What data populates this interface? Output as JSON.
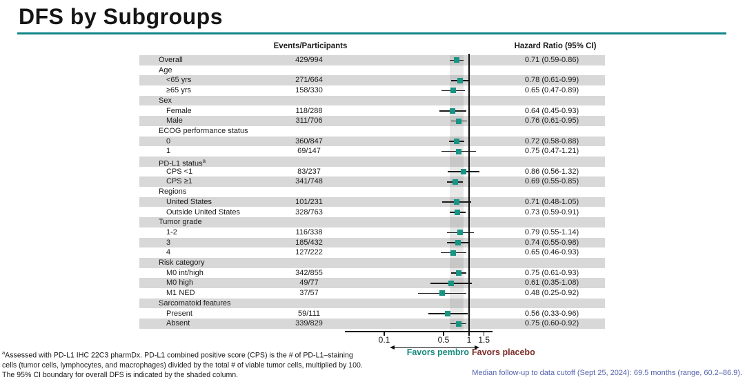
{
  "title": "DFS by Subgroups",
  "columns": {
    "events_header": "Events/Participants",
    "hr_header": "Hazard Ratio (95% CI)"
  },
  "chart_data": {
    "type": "forest",
    "x_axis": {
      "scale": "log",
      "ticks": [
        0.1,
        0.5,
        1,
        1.5
      ],
      "tick_labels": [
        "0.1",
        "0.5",
        "1",
        "1.5"
      ],
      "reference_line": 1
    },
    "shaded_band": {
      "from": 0.59,
      "to": 0.86,
      "meaning": "95% CI boundary for overall DFS"
    },
    "rows": [
      {
        "label": "Overall",
        "indent": 0,
        "events": "429/994",
        "hr": 0.71,
        "lo": 0.59,
        "hi": 0.86,
        "hr_text": "0.71 (0.59-0.86)"
      },
      {
        "label": "Age",
        "header": true
      },
      {
        "label": "<65 yrs",
        "indent": 1,
        "events": "271/664",
        "hr": 0.78,
        "lo": 0.61,
        "hi": 0.99,
        "hr_text": "0.78 (0.61-0.99)"
      },
      {
        "label": "≥65 yrs",
        "indent": 1,
        "events": "158/330",
        "hr": 0.65,
        "lo": 0.47,
        "hi": 0.89,
        "hr_text": "0.65 (0.47-0.89)"
      },
      {
        "label": "Sex",
        "header": true
      },
      {
        "label": "Female",
        "indent": 1,
        "events": "118/288",
        "hr": 0.64,
        "lo": 0.45,
        "hi": 0.93,
        "hr_text": "0.64 (0.45-0.93)"
      },
      {
        "label": "Male",
        "indent": 1,
        "events": "311/706",
        "hr": 0.76,
        "lo": 0.61,
        "hi": 0.95,
        "hr_text": "0.76 (0.61-0.95)"
      },
      {
        "label": "ECOG performance status",
        "header": true
      },
      {
        "label": "0",
        "indent": 1,
        "events": "360/847",
        "hr": 0.72,
        "lo": 0.58,
        "hi": 0.88,
        "hr_text": "0.72 (0.58-0.88)"
      },
      {
        "label": "1",
        "indent": 1,
        "events": "69/147",
        "hr": 0.75,
        "lo": 0.47,
        "hi": 1.21,
        "hr_text": "0.75 (0.47-1.21)"
      },
      {
        "label": "PD-L1 status",
        "sup": "a",
        "header": true
      },
      {
        "label": "CPS <1",
        "indent": 1,
        "events": "83/237",
        "hr": 0.86,
        "lo": 0.56,
        "hi": 1.32,
        "hr_text": "0.86 (0.56-1.32)"
      },
      {
        "label": "CPS ≥1",
        "indent": 1,
        "events": "341/748",
        "hr": 0.69,
        "lo": 0.55,
        "hi": 0.85,
        "hr_text": "0.69 (0.55-0.85)"
      },
      {
        "label": "Regions",
        "header": true
      },
      {
        "label": "United States",
        "indent": 1,
        "events": "101/231",
        "hr": 0.71,
        "lo": 0.48,
        "hi": 1.05,
        "hr_text": "0.71 (0.48-1.05)"
      },
      {
        "label": "Outside United States",
        "indent": 1,
        "events": "328/763",
        "hr": 0.73,
        "lo": 0.59,
        "hi": 0.91,
        "hr_text": "0.73 (0.59-0.91)"
      },
      {
        "label": "Tumor grade",
        "header": true
      },
      {
        "label": "1-2",
        "indent": 1,
        "events": "116/338",
        "hr": 0.79,
        "lo": 0.55,
        "hi": 1.14,
        "hr_text": "0.79 (0.55-1.14)"
      },
      {
        "label": "3",
        "indent": 1,
        "events": "185/432",
        "hr": 0.74,
        "lo": 0.55,
        "hi": 0.98,
        "hr_text": "0.74 (0.55-0.98)"
      },
      {
        "label": "4",
        "indent": 1,
        "events": "127/222",
        "hr": 0.65,
        "lo": 0.46,
        "hi": 0.93,
        "hr_text": "0.65 (0.46-0.93)"
      },
      {
        "label": "Risk category",
        "header": true
      },
      {
        "label": "M0 int/high",
        "indent": 1,
        "events": "342/855",
        "hr": 0.75,
        "lo": 0.61,
        "hi": 0.93,
        "hr_text": "0.75 (0.61-0.93)"
      },
      {
        "label": "M0 high",
        "indent": 1,
        "events": "49/77",
        "hr": 0.61,
        "lo": 0.35,
        "hi": 1.08,
        "hr_text": "0.61 (0.35-1.08)"
      },
      {
        "label": "M1 NED",
        "indent": 1,
        "events": "37/57",
        "hr": 0.48,
        "lo": 0.25,
        "hi": 0.92,
        "hr_text": "0.48 (0.25-0.92)"
      },
      {
        "label": "Sarcomatoid features",
        "header": true
      },
      {
        "label": "Present",
        "indent": 1,
        "events": "59/111",
        "hr": 0.56,
        "lo": 0.33,
        "hi": 0.96,
        "hr_text": "0.56 (0.33-0.96)"
      },
      {
        "label": "Absent",
        "indent": 1,
        "events": "339/829",
        "hr": 0.75,
        "lo": 0.6,
        "hi": 0.92,
        "hr_text": "0.75 (0.60-0.92)"
      }
    ],
    "favors": {
      "left": "Favors pembro",
      "right": "Favors placebo"
    },
    "legend_position": "bottom"
  },
  "footnotes": {
    "sup": "a",
    "lines": [
      "Assessed with PD-L1 IHC 22C3 pharmDx. PD-L1 combined positive score (CPS) is the # of PD-L1–staining",
      "cells (tumor cells, lymphocytes, and macrophages) divided by the total # of viable tumor cells, multiplied by 100.",
      "The 95% CI boundary for overall DFS is indicated by the shaded column."
    ],
    "median_note": "Median follow-up to data cutoff (Sept 25, 2024): 69.5 months (range, 60.2–86.9)."
  },
  "colors": {
    "accent_teal": "#0E8488",
    "marker_teal": "#189484",
    "favors_pembro_teal": "#17897B",
    "favors_placebo_maroon": "#7C2B28",
    "median_note_blue": "#5463AD",
    "band_gray": "#d8d8d8"
  }
}
